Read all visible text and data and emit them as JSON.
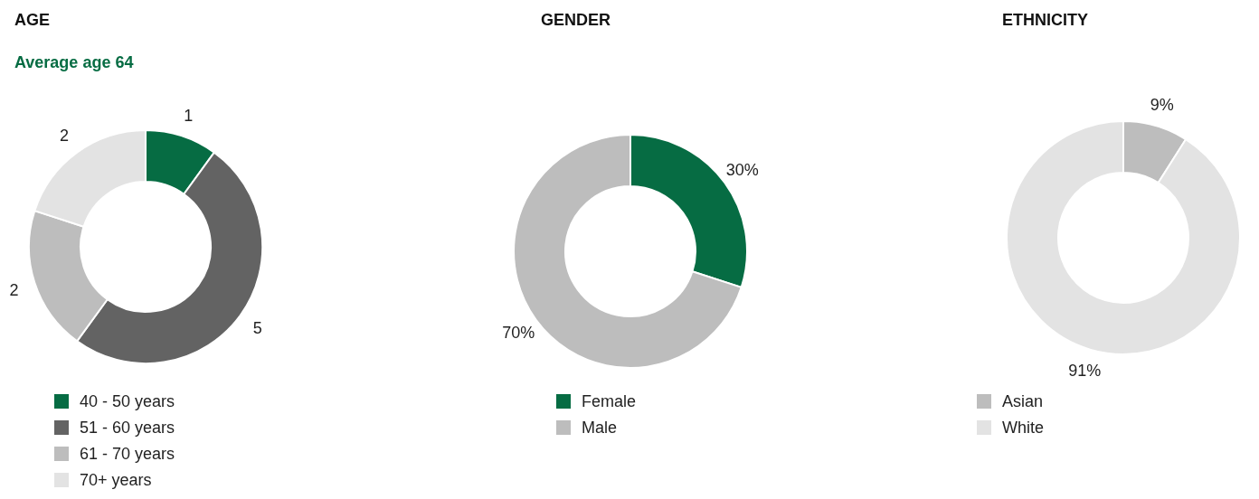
{
  "chart_data": [
    {
      "type": "donut",
      "title": "AGE",
      "subtitle": "Average age 64",
      "categories": [
        "40 - 50 years",
        "51 - 60 years",
        "61 - 70 years",
        "70+ years"
      ],
      "values": [
        1,
        5,
        2,
        2
      ],
      "colors": [
        "#066c43",
        "#636363",
        "#bdbdbd",
        "#e3e3e3"
      ],
      "data_labels": true,
      "legend": "bottom"
    },
    {
      "type": "donut",
      "title": "GENDER",
      "categories": [
        "Female",
        "Male"
      ],
      "values": [
        30,
        70
      ],
      "colors": [
        "#066c43",
        "#bdbdbd"
      ],
      "value_labels": [
        "30%",
        "70%"
      ],
      "legend": "bottom"
    },
    {
      "type": "donut",
      "title": "ETHNICITY",
      "categories": [
        "Asian",
        "White"
      ],
      "values": [
        9,
        91
      ],
      "colors": [
        "#bdbdbd",
        "#e3e3e3"
      ],
      "value_labels": [
        "9%",
        "91%"
      ],
      "legend": "bottom"
    }
  ]
}
